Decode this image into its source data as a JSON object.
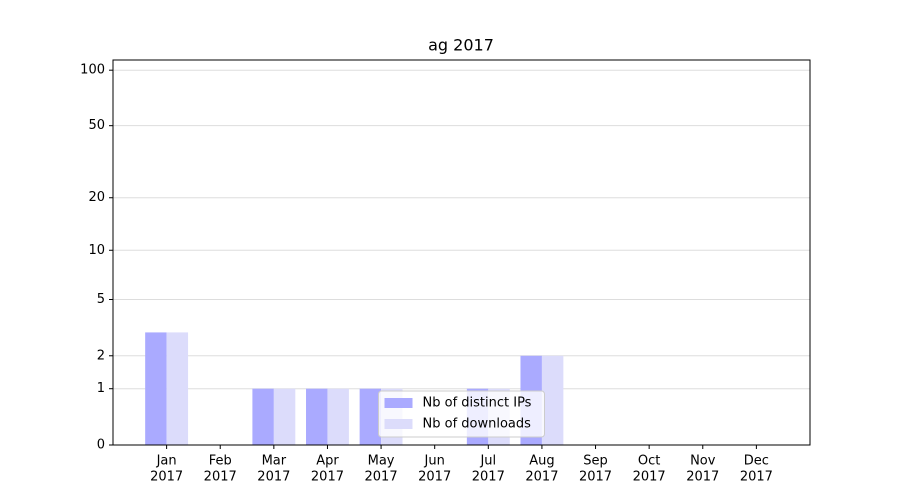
{
  "chart_data": {
    "type": "bar",
    "title": "ag 2017",
    "categories": [
      [
        "Jan",
        "2017"
      ],
      [
        "Feb",
        "2017"
      ],
      [
        "Mar",
        "2017"
      ],
      [
        "Apr",
        "2017"
      ],
      [
        "May",
        "2017"
      ],
      [
        "Jun",
        "2017"
      ],
      [
        "Jul",
        "2017"
      ],
      [
        "Aug",
        "2017"
      ],
      [
        "Sep",
        "2017"
      ],
      [
        "Oct",
        "2017"
      ],
      [
        "Nov",
        "2017"
      ],
      [
        "Dec",
        "2017"
      ]
    ],
    "series": [
      {
        "name": "Nb of distinct IPs",
        "color": "#aaaaff",
        "values": [
          3,
          0,
          1,
          1,
          1,
          0,
          1,
          2,
          0,
          0,
          0,
          0
        ]
      },
      {
        "name": "Nb of downloads",
        "color": "#dcdcfb",
        "values": [
          3,
          0,
          1,
          1,
          1,
          0,
          1,
          2,
          0,
          0,
          0,
          0
        ]
      }
    ],
    "yscale": "log1p",
    "ylim": [
      0,
      113.5
    ],
    "yticks": [
      0,
      1,
      2,
      5,
      10,
      20,
      50,
      100
    ],
    "grid": true,
    "legend": "lower center"
  }
}
